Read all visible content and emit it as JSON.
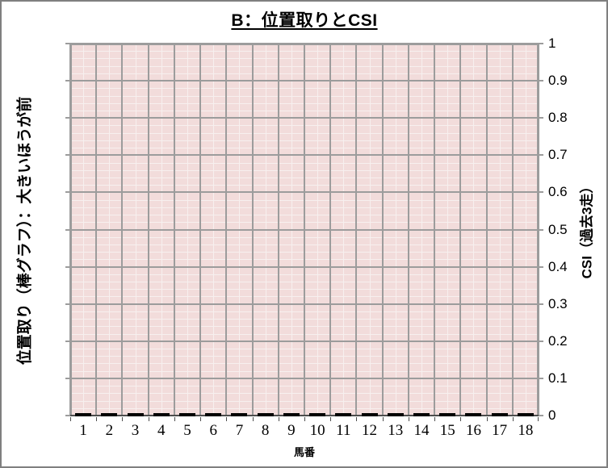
{
  "chart_data": {
    "type": "bar",
    "title": "B：位置取りとCSI",
    "x_axis": {
      "title": "馬番",
      "categories": [
        "1",
        "2",
        "3",
        "4",
        "5",
        "6",
        "7",
        "8",
        "9",
        "10",
        "11",
        "12",
        "13",
        "14",
        "15",
        "16",
        "17",
        "18"
      ]
    },
    "y_axis_left": {
      "title": "位置取り（棒グラフ）：大きいほうが前"
    },
    "y_axis_right": {
      "title": "CSI（過去3走）",
      "min": 0,
      "max": 1,
      "major_step": 0.1,
      "minor_step": 0.02,
      "tick_labels_top_to_bottom": [
        "1",
        "0.9",
        "0.8",
        "0.7",
        "0.6",
        "0.5",
        "0.4",
        "0.3",
        "0.2",
        "0.1",
        "0"
      ]
    },
    "series": [
      {
        "name": "位置取り（棒グラフ）",
        "type": "bar",
        "values": [
          0,
          0,
          0,
          0,
          0,
          0,
          0,
          0,
          0,
          0,
          0,
          0,
          0,
          0,
          0,
          0,
          0,
          0
        ]
      }
    ],
    "layout_hints": {
      "legend": "none",
      "grid": "major and minor, both axes",
      "plot_background": "pink"
    },
    "colors": {
      "plot_bg": "#F2DCDB",
      "grid_minor": "#F7F0EF",
      "grid_major": "#9C9C9C",
      "axis_line": "#4D4D4D",
      "bar": "#000000",
      "outer_border": "#7F7F7F",
      "text": "#000000"
    }
  }
}
